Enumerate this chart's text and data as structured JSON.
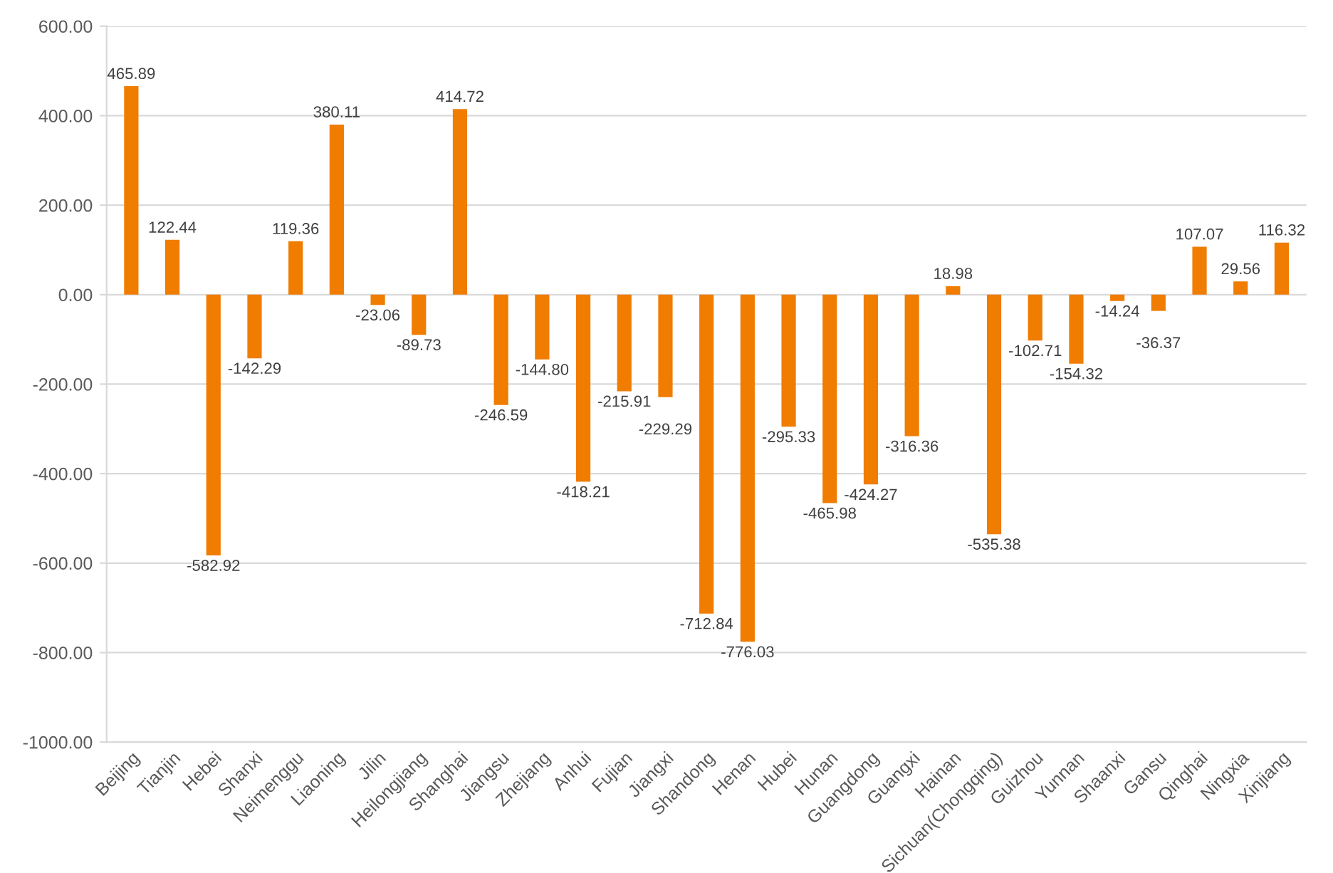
{
  "chart_data": {
    "type": "bar",
    "categories": [
      "Beijing",
      "Tianjin",
      "Hebei",
      "Shanxi",
      "Neimenggu",
      "Liaoning",
      "Jilin",
      "Heilongjiang",
      "Shanghai",
      "Jiangsu",
      "Zhejiang",
      "Anhui",
      "Fujian",
      "Jiangxi",
      "Shandong",
      "Henan",
      "Hubei",
      "Hunan",
      "Guangdong",
      "Guangxi",
      "Hainan",
      "Sichuan(Chongqing)",
      "Guizhou",
      "Yunnan",
      "Shaanxi",
      "Gansu",
      "Qinghai",
      "Ningxia",
      "Xinjiang"
    ],
    "values": [
      465.89,
      122.44,
      -582.92,
      -142.29,
      119.36,
      380.11,
      -23.06,
      -89.73,
      414.72,
      -246.59,
      -144.8,
      -418.21,
      -215.91,
      -229.29,
      -712.84,
      -776.03,
      -295.33,
      -465.98,
      -424.27,
      -316.36,
      18.98,
      -535.38,
      -102.71,
      -154.32,
      -14.24,
      -36.37,
      107.07,
      29.56,
      116.32
    ],
    "value_labels": [
      "465.89",
      "122.44",
      "-582.92",
      "-142.29",
      "119.36",
      "380.11",
      "-23.06",
      "-89.73",
      "414.72",
      "-246.59",
      "-144.80",
      "-418.21",
      "-215.91",
      "-229.29",
      "-712.84",
      "-776.03",
      "-295.33",
      "-465.98",
      "-424.27",
      "-316.36",
      "18.98",
      "-535.38",
      "-102.71",
      "-154.32",
      "-14.24",
      "-36.37",
      "107.07",
      "29.56",
      "116.32"
    ],
    "color": "#f07c00",
    "ylim": [
      -1000,
      600
    ],
    "yticks": [
      {
        "value": -1000,
        "label": "-1000.00"
      },
      {
        "value": -800,
        "label": "-800.00"
      },
      {
        "value": -600,
        "label": "-600.00"
      },
      {
        "value": -400,
        "label": "-400.00"
      },
      {
        "value": -200,
        "label": "-200.00"
      },
      {
        "value": 0,
        "label": "0.00"
      },
      {
        "value": 200,
        "label": "200.00"
      },
      {
        "value": 400,
        "label": "400.00"
      },
      {
        "value": 600,
        "label": "600.00"
      }
    ],
    "grid": "y"
  }
}
